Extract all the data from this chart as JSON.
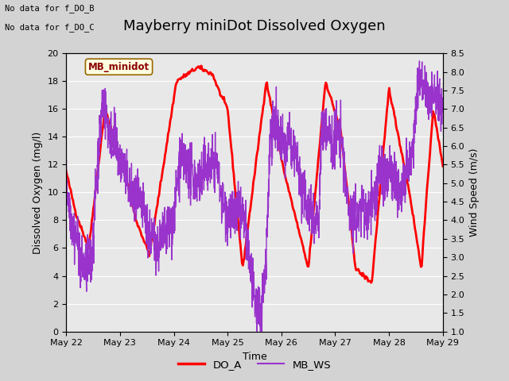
{
  "title": "Mayberry miniDot Dissolved Oxygen",
  "note_line1": "No data for f_DO_B",
  "note_line2": "No data for f_DO_C",
  "legend_box_label": "MB_minidot",
  "xlabel": "Time",
  "ylabel_left": "Dissolved Oxygen (mg/l)",
  "ylabel_right": "Wind Speed (m/s)",
  "ylim_left": [
    0,
    20
  ],
  "ylim_right": [
    1.0,
    8.5
  ],
  "yticks_left": [
    0,
    2,
    4,
    6,
    8,
    10,
    12,
    14,
    16,
    18,
    20
  ],
  "yticks_right": [
    1.0,
    1.5,
    2.0,
    2.5,
    3.0,
    3.5,
    4.0,
    4.5,
    5.0,
    5.5,
    6.0,
    6.5,
    7.0,
    7.5,
    8.0,
    8.5
  ],
  "x_tick_labels": [
    "May 22",
    "May 23",
    "May 24",
    "May 25",
    "May 26",
    "May 27",
    "May 28",
    "May 29"
  ],
  "do_color": "#ff0000",
  "ws_color": "#9933cc",
  "bg_color": "#d3d3d3",
  "plot_bg_color": "#e8e8e8",
  "legend_do_label": "DO_A",
  "legend_ws_label": "MB_WS",
  "do_linewidth": 2.0,
  "ws_linewidth": 1.0,
  "title_fontsize": 13,
  "axis_fontsize": 9,
  "tick_fontsize": 8,
  "do_key_t": [
    0,
    0.18,
    0.42,
    0.72,
    1.05,
    1.3,
    1.55,
    2.05,
    2.45,
    2.72,
    2.85,
    3.0,
    3.28,
    3.72,
    4.05,
    4.5,
    4.82,
    5.1,
    5.38,
    5.68,
    6.0,
    6.38,
    6.6,
    6.82,
    7.0
  ],
  "do_key_v": [
    11.5,
    8.5,
    6.0,
    16.0,
    12.0,
    8.0,
    5.5,
    18.0,
    19.0,
    18.5,
    17.2,
    16.0,
    4.5,
    18.0,
    11.5,
    4.5,
    18.0,
    14.5,
    4.5,
    3.5,
    17.5,
    10.0,
    4.5,
    16.0,
    12.0
  ],
  "ws_key_t": [
    0,
    0.05,
    0.12,
    0.2,
    0.28,
    0.38,
    0.48,
    0.58,
    0.68,
    0.78,
    0.88,
    0.95,
    1.05,
    1.15,
    1.25,
    1.35,
    1.45,
    1.5,
    1.6,
    1.7,
    1.8,
    1.9,
    2.0,
    2.1,
    2.2,
    2.3,
    2.4,
    2.5,
    2.6,
    2.7,
    2.8,
    2.9,
    3.0,
    3.1,
    3.2,
    3.3,
    3.4,
    3.5,
    3.6,
    3.7,
    3.8,
    3.9,
    4.0,
    4.1,
    4.15,
    4.2,
    4.25,
    4.35,
    4.45,
    4.55,
    4.65,
    4.7,
    4.75,
    4.82,
    4.88,
    4.95,
    5.0,
    5.08,
    5.15,
    5.22,
    5.3,
    5.38,
    5.45,
    5.5,
    5.55,
    5.6,
    5.65,
    5.7,
    5.75,
    5.82,
    5.88,
    5.95,
    6.0,
    6.08,
    6.15,
    6.22,
    6.3,
    6.38,
    6.45,
    6.52,
    6.6,
    6.68,
    6.75,
    6.82,
    6.9,
    7.0
  ],
  "ws_key_v": [
    5.0,
    4.5,
    3.8,
    3.5,
    2.8,
    2.7,
    3.0,
    5.5,
    7.3,
    6.5,
    6.2,
    5.8,
    5.5,
    5.0,
    4.5,
    4.5,
    4.2,
    3.8,
    3.5,
    3.3,
    3.5,
    3.8,
    4.0,
    5.5,
    5.5,
    5.3,
    5.1,
    5.0,
    5.5,
    5.5,
    5.5,
    4.5,
    4.2,
    4.0,
    4.3,
    4.0,
    3.0,
    1.7,
    1.5,
    2.5,
    6.5,
    6.5,
    6.0,
    5.8,
    6.5,
    5.5,
    6.0,
    5.0,
    4.5,
    4.3,
    4.0,
    4.2,
    6.5,
    6.5,
    6.3,
    6.0,
    6.3,
    6.3,
    5.8,
    4.5,
    4.3,
    4.0,
    4.2,
    4.5,
    4.3,
    4.0,
    4.5,
    4.5,
    4.5,
    5.5,
    5.2,
    5.0,
    5.3,
    5.2,
    5.0,
    4.8,
    5.0,
    5.5,
    6.0,
    7.5,
    8.0,
    7.5,
    7.2,
    7.5,
    7.2,
    7.0
  ]
}
